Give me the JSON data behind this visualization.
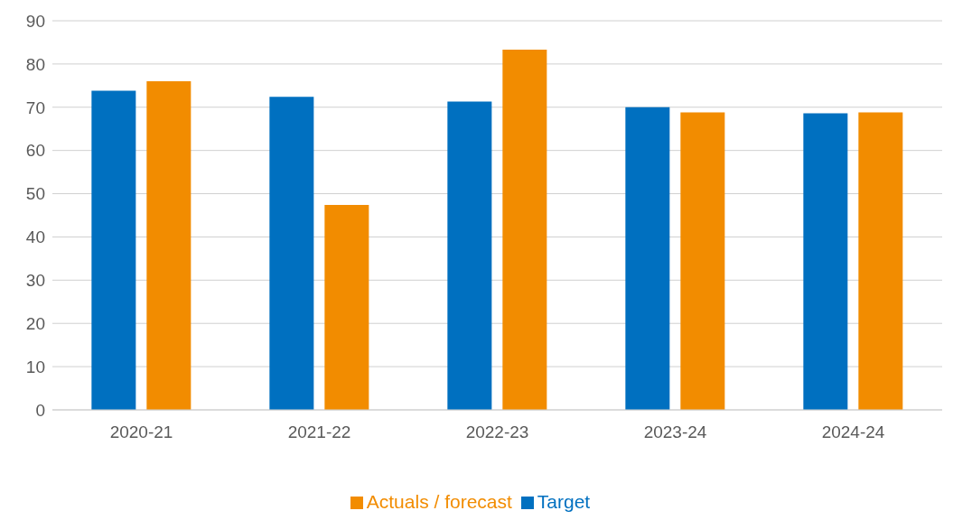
{
  "chart_data": {
    "type": "bar",
    "categories": [
      "2020-21",
      "2021-22",
      "2022-23",
      "2023-24",
      "2024-24"
    ],
    "series": [
      {
        "name": "Target",
        "color": "#0070c0",
        "values": [
          73.8,
          72.4,
          71.3,
          70.0,
          68.6
        ]
      },
      {
        "name": "Actuals / forecast",
        "color": "#f28c00",
        "values": [
          76.0,
          47.4,
          83.3,
          68.8,
          68.8
        ]
      }
    ],
    "ylim": [
      0,
      90
    ],
    "yticks": [
      0,
      10,
      20,
      30,
      40,
      50,
      60,
      70,
      80,
      90
    ],
    "grid": "y",
    "legend": "bottom"
  }
}
